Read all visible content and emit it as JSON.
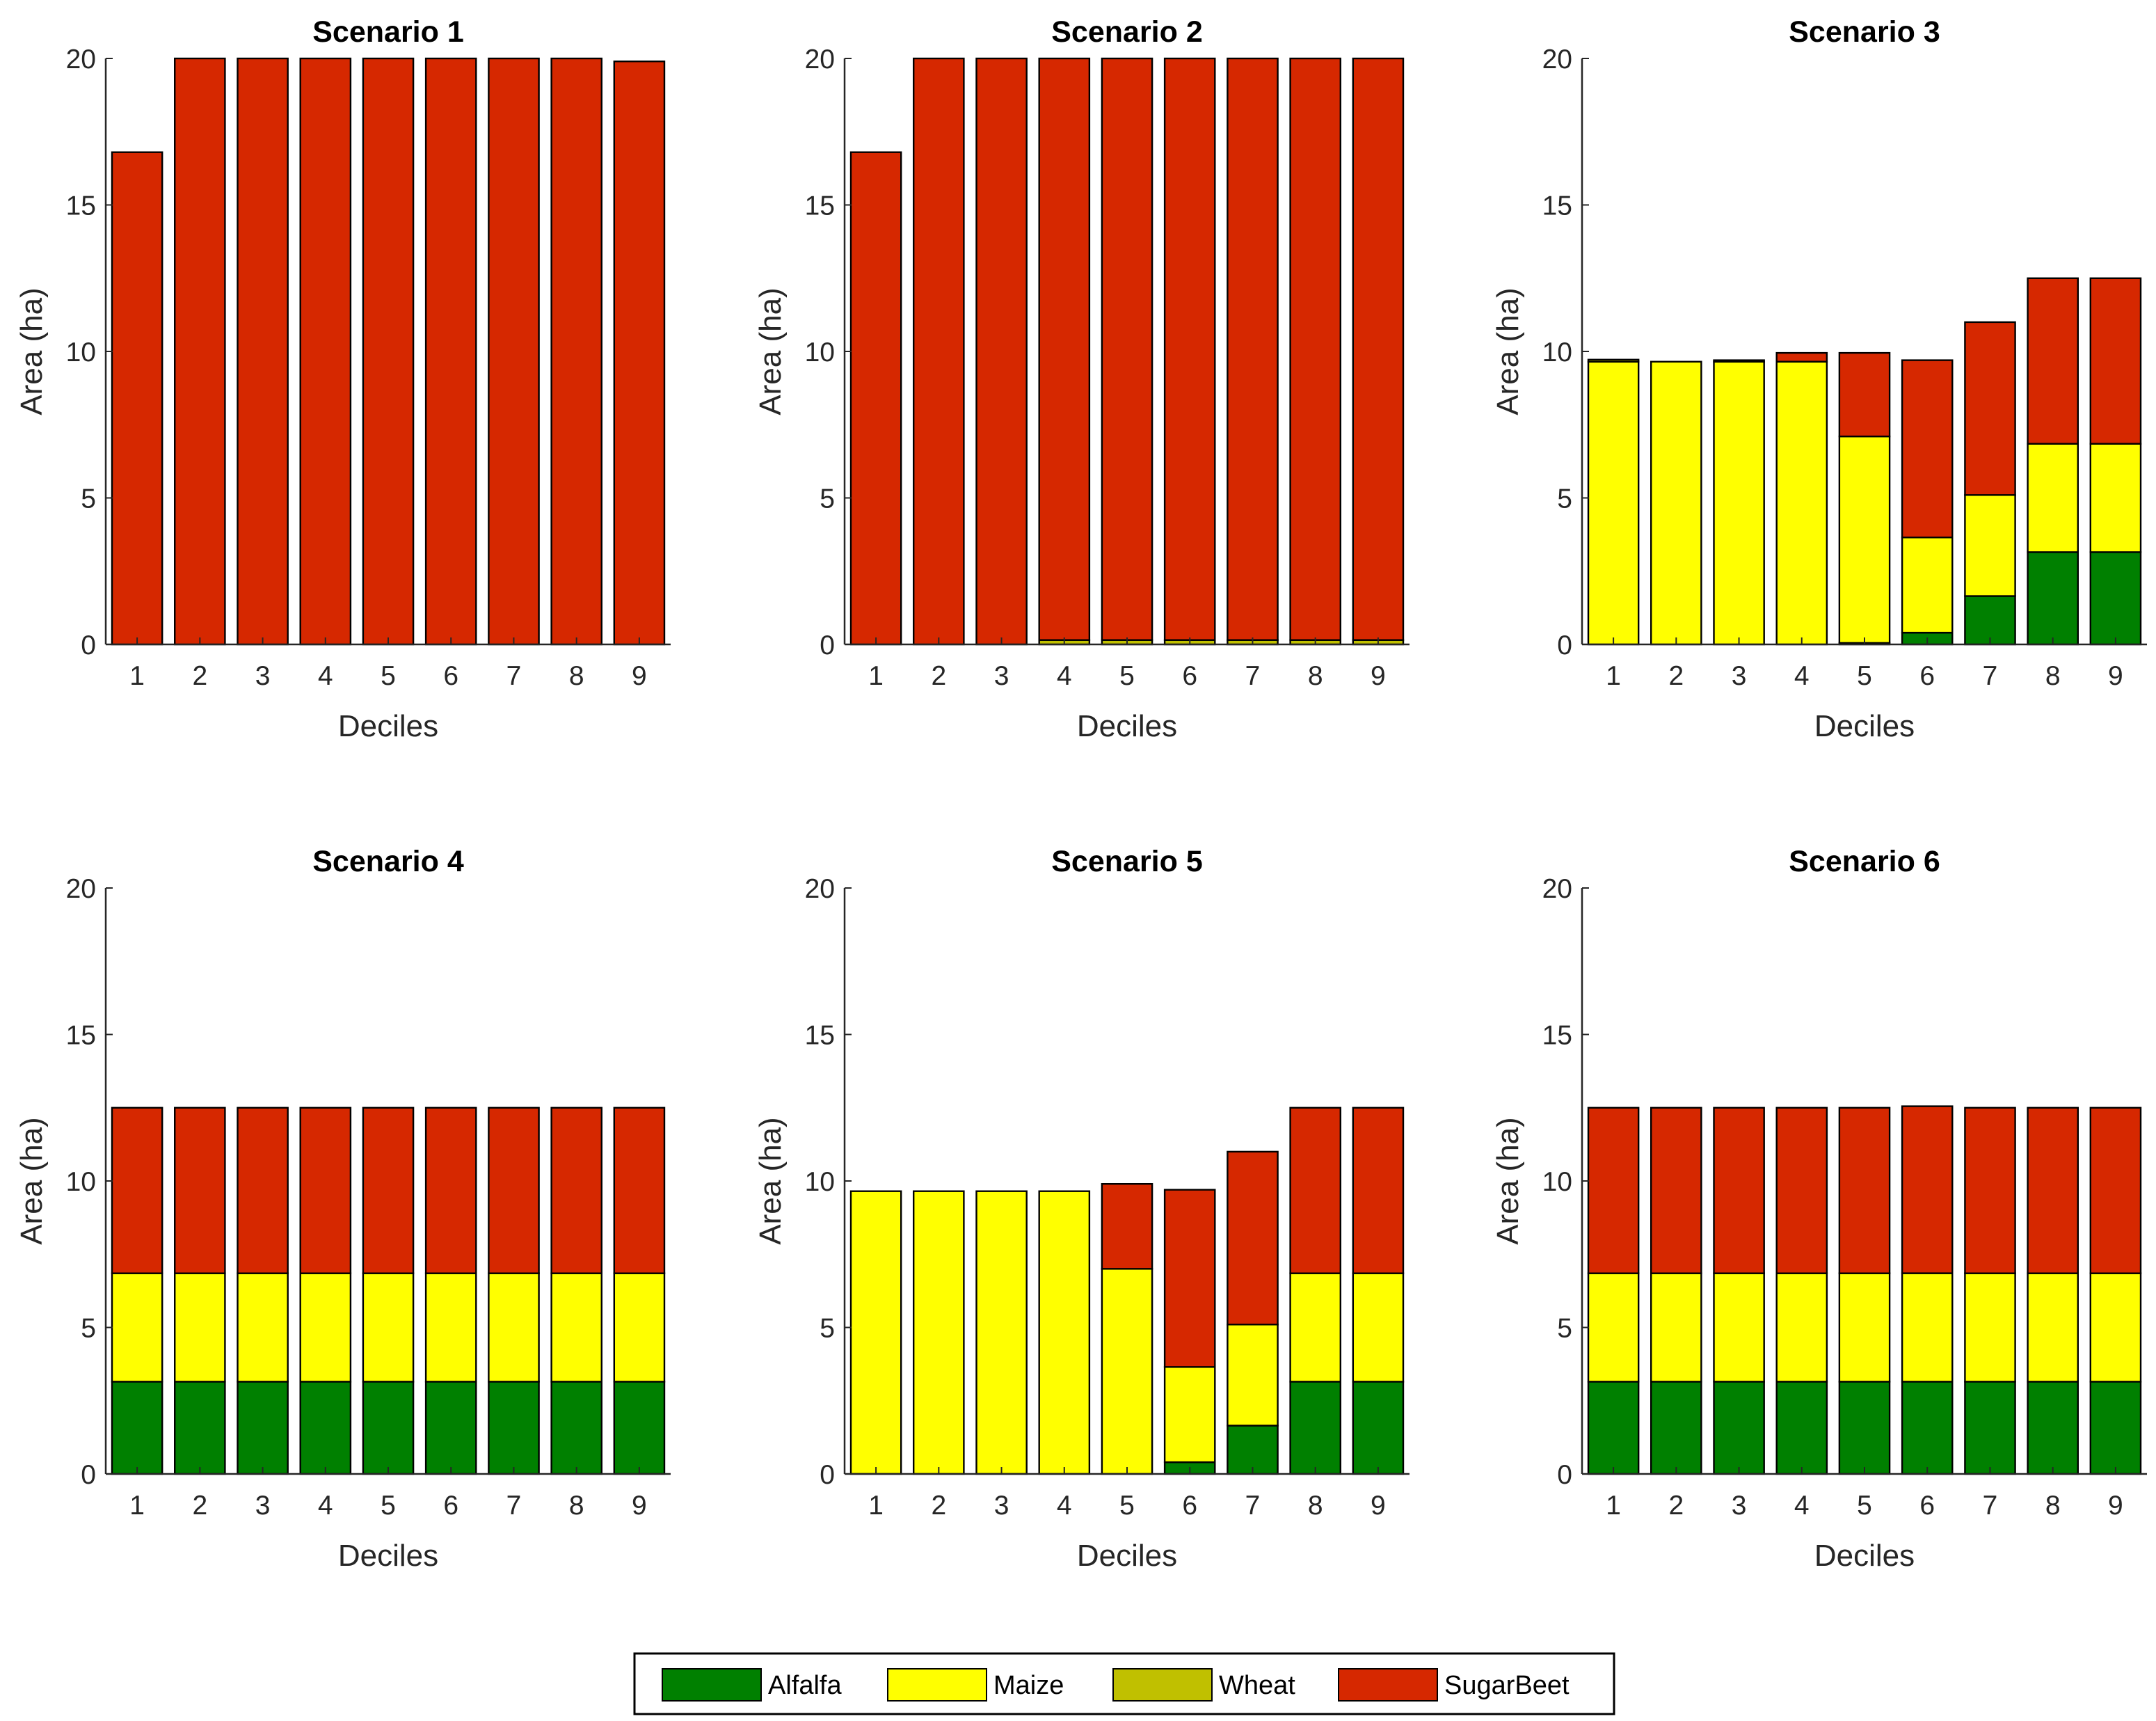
{
  "legend": {
    "placement": "bottom-center",
    "entries": [
      "Alfalfa",
      "Maize",
      "Wheat",
      "SugarBeet"
    ]
  },
  "colors": {
    "Alfalfa": "#008000",
    "Maize": "#ffff00",
    "Wheat": "#c0c000",
    "SugarBeet": "#d62800"
  },
  "chart_data": [
    {
      "type": "bar",
      "stacked": true,
      "title": "Scenario 1",
      "xlabel": "Deciles",
      "ylabel": "Area (ha)",
      "categories": [
        "1",
        "2",
        "3",
        "4",
        "5",
        "6",
        "7",
        "8",
        "9"
      ],
      "ylim": [
        0,
        20
      ],
      "yticks": [
        "0",
        "5",
        "10",
        "15",
        "20"
      ],
      "grid": false,
      "series": [
        {
          "name": "Alfalfa",
          "values": [
            0,
            0,
            0,
            0,
            0,
            0,
            0,
            0,
            0
          ]
        },
        {
          "name": "Maize",
          "values": [
            0,
            0,
            0,
            0,
            0,
            0,
            0,
            0,
            0
          ]
        },
        {
          "name": "Wheat",
          "values": [
            0,
            0,
            0,
            0,
            0,
            0,
            0,
            0,
            0
          ]
        },
        {
          "name": "SugarBeet",
          "values": [
            16.8,
            20,
            20,
            20,
            20,
            20,
            20,
            20,
            19.9
          ]
        }
      ]
    },
    {
      "type": "bar",
      "stacked": true,
      "title": "Scenario 2",
      "xlabel": "Deciles",
      "ylabel": "Area (ha)",
      "categories": [
        "1",
        "2",
        "3",
        "4",
        "5",
        "6",
        "7",
        "8",
        "9"
      ],
      "ylim": [
        0,
        20
      ],
      "yticks": [
        "0",
        "5",
        "10",
        "15",
        "20"
      ],
      "grid": false,
      "series": [
        {
          "name": "Alfalfa",
          "values": [
            0,
            0,
            0,
            0,
            0,
            0,
            0,
            0,
            0
          ]
        },
        {
          "name": "Maize",
          "values": [
            0,
            0,
            0,
            0,
            0,
            0,
            0,
            0,
            0
          ]
        },
        {
          "name": "Wheat",
          "values": [
            0,
            0,
            0,
            0.15,
            0.15,
            0.15,
            0.15,
            0.15,
            0.15
          ]
        },
        {
          "name": "SugarBeet",
          "values": [
            16.8,
            20,
            20,
            19.85,
            19.85,
            19.85,
            19.85,
            19.85,
            19.85
          ]
        }
      ]
    },
    {
      "type": "bar",
      "stacked": true,
      "title": "Scenario 3",
      "xlabel": "Deciles",
      "ylabel": "Area (ha)",
      "categories": [
        "1",
        "2",
        "3",
        "4",
        "5",
        "6",
        "7",
        "8",
        "9"
      ],
      "ylim": [
        0,
        20
      ],
      "yticks": [
        "0",
        "5",
        "10",
        "15",
        "20"
      ],
      "grid": false,
      "series": [
        {
          "name": "Alfalfa",
          "values": [
            0,
            0,
            0,
            0,
            0.05,
            0.4,
            1.65,
            3.15,
            3.15
          ]
        },
        {
          "name": "Maize",
          "values": [
            9.65,
            9.65,
            9.65,
            9.65,
            7.05,
            3.25,
            3.45,
            3.7,
            3.7
          ]
        },
        {
          "name": "Wheat",
          "values": [
            0.07,
            0,
            0.05,
            0,
            0,
            0,
            0,
            0,
            0
          ]
        },
        {
          "name": "SugarBeet",
          "values": [
            0,
            0,
            0,
            0.3,
            2.85,
            6.05,
            5.9,
            5.65,
            5.65
          ]
        }
      ]
    },
    {
      "type": "bar",
      "stacked": true,
      "title": "Scenario 4",
      "xlabel": "Deciles",
      "ylabel": "Area (ha)",
      "categories": [
        "1",
        "2",
        "3",
        "4",
        "5",
        "6",
        "7",
        "8",
        "9"
      ],
      "ylim": [
        0,
        20
      ],
      "yticks": [
        "0",
        "5",
        "10",
        "15",
        "20"
      ],
      "grid": false,
      "series": [
        {
          "name": "Alfalfa",
          "values": [
            3.15,
            3.15,
            3.15,
            3.15,
            3.15,
            3.15,
            3.15,
            3.15,
            3.15
          ]
        },
        {
          "name": "Maize",
          "values": [
            3.7,
            3.7,
            3.7,
            3.7,
            3.7,
            3.7,
            3.7,
            3.7,
            3.7
          ]
        },
        {
          "name": "Wheat",
          "values": [
            0,
            0,
            0,
            0,
            0,
            0,
            0,
            0,
            0
          ]
        },
        {
          "name": "SugarBeet",
          "values": [
            5.65,
            5.65,
            5.65,
            5.65,
            5.65,
            5.65,
            5.65,
            5.65,
            5.65
          ]
        }
      ]
    },
    {
      "type": "bar",
      "stacked": true,
      "title": "Scenario 5",
      "xlabel": "Deciles",
      "ylabel": "Area (ha)",
      "categories": [
        "1",
        "2",
        "3",
        "4",
        "5",
        "6",
        "7",
        "8",
        "9"
      ],
      "ylim": [
        0,
        20
      ],
      "yticks": [
        "0",
        "5",
        "10",
        "15",
        "20"
      ],
      "grid": false,
      "series": [
        {
          "name": "Alfalfa",
          "values": [
            0,
            0,
            0,
            0,
            0,
            0.4,
            1.65,
            3.15,
            3.15
          ]
        },
        {
          "name": "Maize",
          "values": [
            9.65,
            9.65,
            9.65,
            9.65,
            7,
            3.25,
            3.45,
            3.7,
            3.7
          ]
        },
        {
          "name": "Wheat",
          "values": [
            0,
            0,
            0,
            0,
            0,
            0,
            0,
            0,
            0
          ]
        },
        {
          "name": "SugarBeet",
          "values": [
            0,
            0,
            0,
            0,
            2.9,
            6.05,
            5.9,
            5.65,
            5.65
          ]
        }
      ]
    },
    {
      "type": "bar",
      "stacked": true,
      "title": "Scenario 6",
      "xlabel": "Deciles",
      "ylabel": "Area (ha)",
      "categories": [
        "1",
        "2",
        "3",
        "4",
        "5",
        "6",
        "7",
        "8",
        "9"
      ],
      "ylim": [
        0,
        20
      ],
      "yticks": [
        "0",
        "5",
        "10",
        "15",
        "20"
      ],
      "grid": false,
      "series": [
        {
          "name": "Alfalfa",
          "values": [
            3.15,
            3.15,
            3.15,
            3.15,
            3.15,
            3.15,
            3.15,
            3.15,
            3.15
          ]
        },
        {
          "name": "Maize",
          "values": [
            3.7,
            3.7,
            3.7,
            3.7,
            3.7,
            3.7,
            3.7,
            3.7,
            3.7
          ]
        },
        {
          "name": "Wheat",
          "values": [
            0,
            0,
            0,
            0,
            0,
            0,
            0,
            0,
            0
          ]
        },
        {
          "name": "SugarBeet",
          "values": [
            5.65,
            5.65,
            5.65,
            5.65,
            5.65,
            5.7,
            5.65,
            5.65,
            5.65
          ]
        }
      ]
    }
  ]
}
